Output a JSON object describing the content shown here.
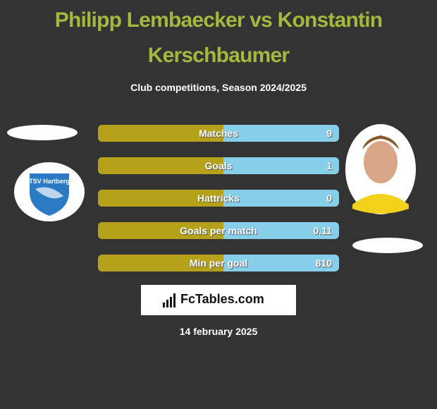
{
  "header": {
    "title": "Philipp Lembaecker vs Konstantin Kerschbaumer",
    "subtitle": "Club competitions, Season 2024/2025"
  },
  "left_player": {
    "club_badge": "TSV Hartberg"
  },
  "rows": [
    {
      "label": "Matches",
      "right": "9"
    },
    {
      "label": "Goals",
      "right": "1"
    },
    {
      "label": "Hattricks",
      "right": "0"
    },
    {
      "label": "Goals per match",
      "right": "0.11"
    },
    {
      "label": "Min per goal",
      "right": "810"
    }
  ],
  "brand": "FcTables.com",
  "date": "14 february 2025"
}
